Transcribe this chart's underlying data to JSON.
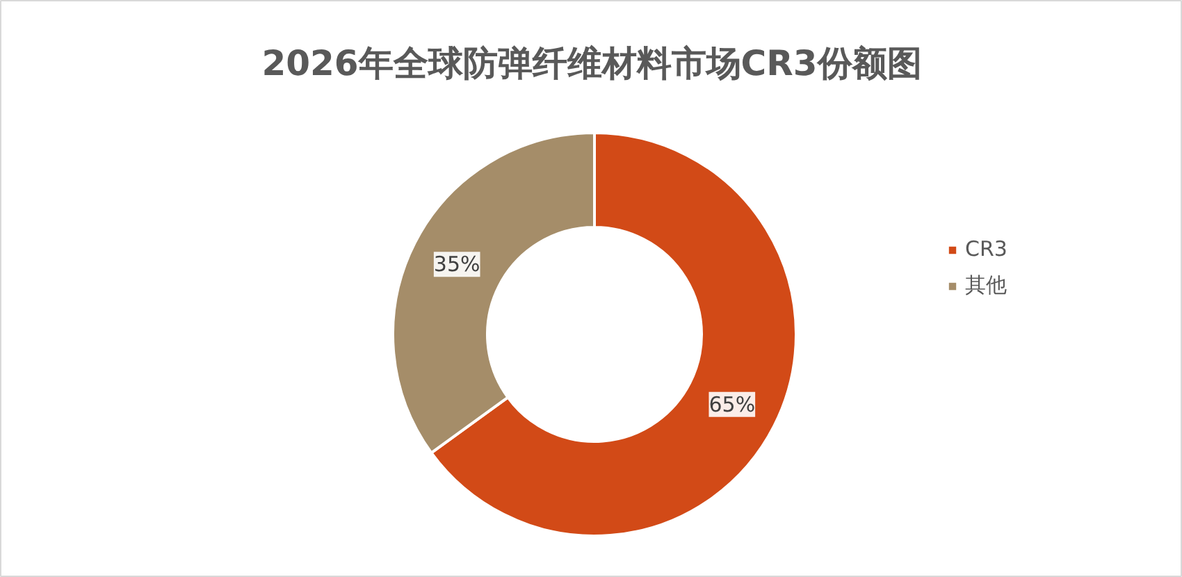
{
  "chart_data": {
    "type": "donut",
    "title": "2026年全球防弹纤维材料市场CR3份额图",
    "categories": [
      "CR3",
      "其他"
    ],
    "values": [
      65,
      35
    ],
    "colors": [
      "#d24a17",
      "#a58d69"
    ],
    "value_labels": [
      "65%",
      "35%"
    ],
    "legend": "right"
  }
}
